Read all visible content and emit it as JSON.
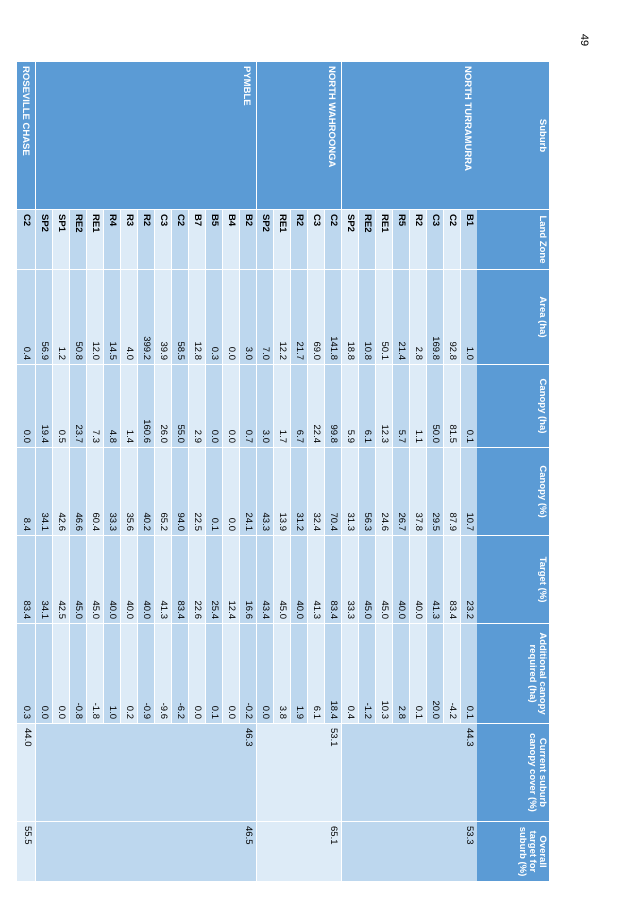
{
  "page_number": "49",
  "headers": {
    "suburb": "Suburb",
    "zone": "Land Zone",
    "area": "Area (ha)",
    "canopy_ha": "Canopy (ha)",
    "canopy_pct": "Canopy (%)",
    "target": "Target (%)",
    "additional": "Additional canopy required (ha)",
    "current": "Current suburb canopy cover (%)",
    "overall": "Overall target for suburb (%)"
  },
  "groups": [
    {
      "suburb": "NORTH TURRAMURRA",
      "current": "44.3",
      "overall": "53.3",
      "rows": [
        {
          "zone": "B1",
          "area": "1.0",
          "canopy_ha": "0.1",
          "canopy_pct": "10.7",
          "target": "23.2",
          "additional": "0.1"
        },
        {
          "zone": "C2",
          "area": "92.8",
          "canopy_ha": "81.5",
          "canopy_pct": "87.9",
          "target": "83.4",
          "additional": "-4.2"
        },
        {
          "zone": "C3",
          "area": "169.8",
          "canopy_ha": "50.0",
          "canopy_pct": "29.5",
          "target": "41.3",
          "additional": "20.0"
        },
        {
          "zone": "R2",
          "area": "2.8",
          "canopy_ha": "1.1",
          "canopy_pct": "37.8",
          "target": "40.0",
          "additional": "0.1"
        },
        {
          "zone": "R5",
          "area": "21.4",
          "canopy_ha": "5.7",
          "canopy_pct": "26.7",
          "target": "40.0",
          "additional": "2.8"
        },
        {
          "zone": "RE1",
          "area": "50.1",
          "canopy_ha": "12.3",
          "canopy_pct": "24.6",
          "target": "45.0",
          "additional": "10.3"
        },
        {
          "zone": "RE2",
          "area": "10.8",
          "canopy_ha": "6.1",
          "canopy_pct": "56.3",
          "target": "45.0",
          "additional": "-1.2"
        },
        {
          "zone": "SP2",
          "area": "18.8",
          "canopy_ha": "5.9",
          "canopy_pct": "31.3",
          "target": "33.3",
          "additional": "0.4"
        }
      ]
    },
    {
      "suburb": "NORTH WAHROONGA",
      "current": "53.1",
      "overall": "65.1",
      "rows": [
        {
          "zone": "C2",
          "area": "141.8",
          "canopy_ha": "99.8",
          "canopy_pct": "70.4",
          "target": "83.4",
          "additional": "18.4"
        },
        {
          "zone": "C3",
          "area": "69.0",
          "canopy_ha": "22.4",
          "canopy_pct": "32.4",
          "target": "41.3",
          "additional": "6.1"
        },
        {
          "zone": "R2",
          "area": "21.7",
          "canopy_ha": "6.7",
          "canopy_pct": "31.2",
          "target": "40.0",
          "additional": "1.9"
        },
        {
          "zone": "RE1",
          "area": "12.2",
          "canopy_ha": "1.7",
          "canopy_pct": "13.9",
          "target": "45.0",
          "additional": "3.8"
        },
        {
          "zone": "SP2",
          "area": "7.0",
          "canopy_ha": "3.0",
          "canopy_pct": "43.3",
          "target": "43.4",
          "additional": "0.0"
        }
      ]
    },
    {
      "suburb": "PYMBLE",
      "current": "46.3",
      "overall": "46.5",
      "rows": [
        {
          "zone": "B2",
          "area": "3.0",
          "canopy_ha": "0.7",
          "canopy_pct": "24.1",
          "target": "16.6",
          "additional": "-0.2"
        },
        {
          "zone": "B4",
          "area": "0.0",
          "canopy_ha": "0.0",
          "canopy_pct": "0.0",
          "target": "12.4",
          "additional": "0.0"
        },
        {
          "zone": "B5",
          "area": "0.3",
          "canopy_ha": "0.0",
          "canopy_pct": "0.1",
          "target": "25.4",
          "additional": "0.1"
        },
        {
          "zone": "B7",
          "area": "12.8",
          "canopy_ha": "2.9",
          "canopy_pct": "22.5",
          "target": "22.6",
          "additional": "0.0"
        },
        {
          "zone": "C2",
          "area": "58.5",
          "canopy_ha": "55.0",
          "canopy_pct": "94.0",
          "target": "83.4",
          "additional": "-6.2"
        },
        {
          "zone": "C3",
          "area": "39.9",
          "canopy_ha": "26.0",
          "canopy_pct": "65.2",
          "target": "41.3",
          "additional": "-9.6"
        },
        {
          "zone": "R2",
          "area": "399.2",
          "canopy_ha": "160.6",
          "canopy_pct": "40.2",
          "target": "40.0",
          "additional": "-0.9"
        },
        {
          "zone": "R3",
          "area": "4.0",
          "canopy_ha": "1.4",
          "canopy_pct": "35.6",
          "target": "40.0",
          "additional": "0.2"
        },
        {
          "zone": "R4",
          "area": "14.5",
          "canopy_ha": "4.8",
          "canopy_pct": "33.3",
          "target": "40.0",
          "additional": "1.0"
        },
        {
          "zone": "RE1",
          "area": "12.0",
          "canopy_ha": "7.3",
          "canopy_pct": "60.4",
          "target": "45.0",
          "additional": "-1.8"
        },
        {
          "zone": "RE2",
          "area": "50.8",
          "canopy_ha": "23.7",
          "canopy_pct": "46.6",
          "target": "45.0",
          "additional": "-0.8"
        },
        {
          "zone": "SP1",
          "area": "1.2",
          "canopy_ha": "0.5",
          "canopy_pct": "42.6",
          "target": "42.5",
          "additional": "0.0"
        },
        {
          "zone": "SP2",
          "area": "56.9",
          "canopy_ha": "19.4",
          "canopy_pct": "34.1",
          "target": "34.1",
          "additional": "0.0"
        }
      ]
    },
    {
      "suburb": "ROSEVILLE CHASE",
      "current": "44.0",
      "overall": "55.5",
      "rows": [
        {
          "zone": "C2",
          "area": "0.4",
          "canopy_ha": "0.0",
          "canopy_pct": "8.4",
          "target": "83.4",
          "additional": "0.3"
        }
      ]
    }
  ]
}
